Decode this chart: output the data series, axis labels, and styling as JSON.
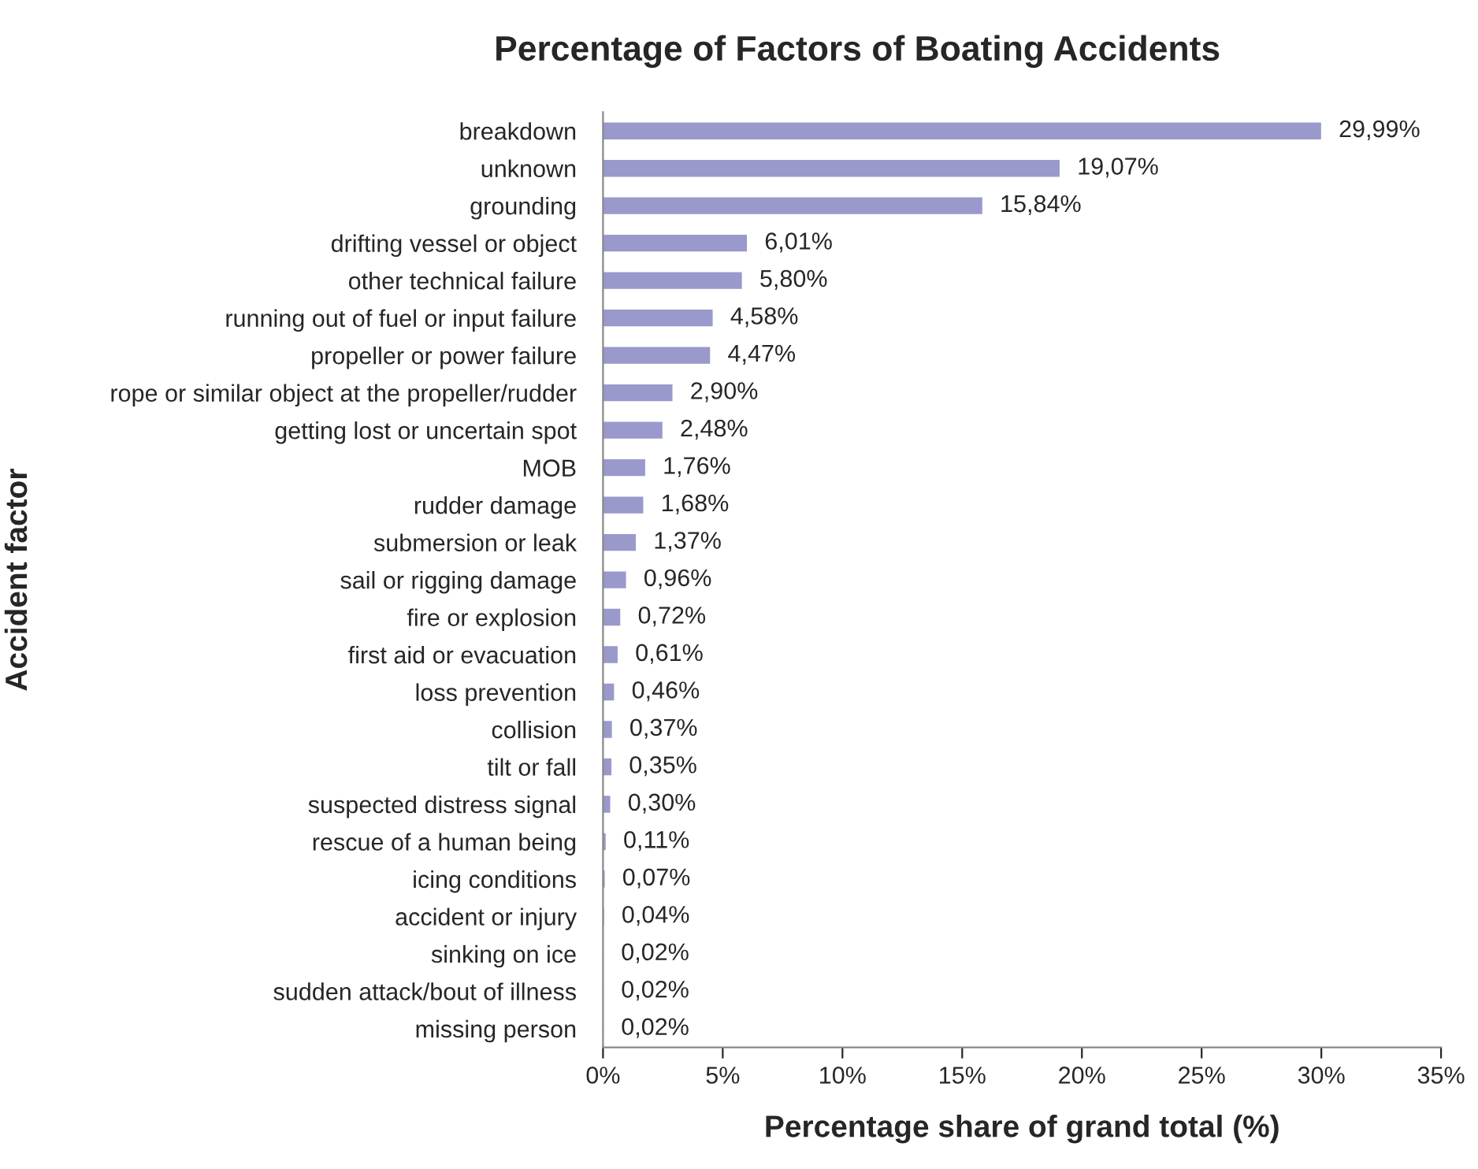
{
  "chart_data": {
    "type": "bar",
    "orientation": "horizontal",
    "title": "Percentage of Factors of Boating Accidents",
    "xlabel": "Percentage share of grand total (%)",
    "ylabel": "Accident factor",
    "categories": [
      "breakdown",
      "unknown",
      "grounding",
      "drifting vessel or object",
      "other technical failure",
      "running out of fuel or input failure",
      "propeller or power failure",
      "rope or similar object at the propeller/rudder",
      "getting lost or uncertain spot",
      "MOB",
      "rudder damage",
      "submersion or leak",
      "sail or rigging damage",
      "fire or explosion",
      "first aid or evacuation",
      "loss prevention",
      "collision",
      "tilt or fall",
      "suspected distress signal",
      "rescue of a human being",
      "icing conditions",
      "accident or injury",
      "sinking on ice",
      "sudden attack/bout of illness",
      "missing person"
    ],
    "values": [
      29.99,
      19.07,
      15.84,
      6.01,
      5.8,
      4.58,
      4.47,
      2.9,
      2.48,
      1.76,
      1.68,
      1.37,
      0.96,
      0.72,
      0.61,
      0.46,
      0.37,
      0.35,
      0.3,
      0.11,
      0.07,
      0.04,
      0.02,
      0.02,
      0.02
    ],
    "value_labels": [
      "29,99%",
      "19,07%",
      "15,84%",
      "6,01%",
      "5,80%",
      "4,58%",
      "4,47%",
      "2,90%",
      "2,48%",
      "1,76%",
      "1,68%",
      "1,37%",
      "0,96%",
      "0,72%",
      "0,61%",
      "0,46%",
      "0,37%",
      "0,35%",
      "0,30%",
      "0,11%",
      "0,07%",
      "0,04%",
      "0,02%",
      "0,02%",
      "0,02%"
    ],
    "color": "#9999cc",
    "xlim": [
      0,
      35
    ],
    "xticks": [
      {
        "value": 0,
        "label": "0%"
      },
      {
        "value": 5,
        "label": "5%"
      },
      {
        "value": 10,
        "label": "10%"
      },
      {
        "value": 15,
        "label": "15%"
      },
      {
        "value": 20,
        "label": "20%"
      },
      {
        "value": 25,
        "label": "25%"
      },
      {
        "value": 30,
        "label": "30%"
      },
      {
        "value": 35,
        "label": "35%"
      }
    ],
    "grid": false
  }
}
